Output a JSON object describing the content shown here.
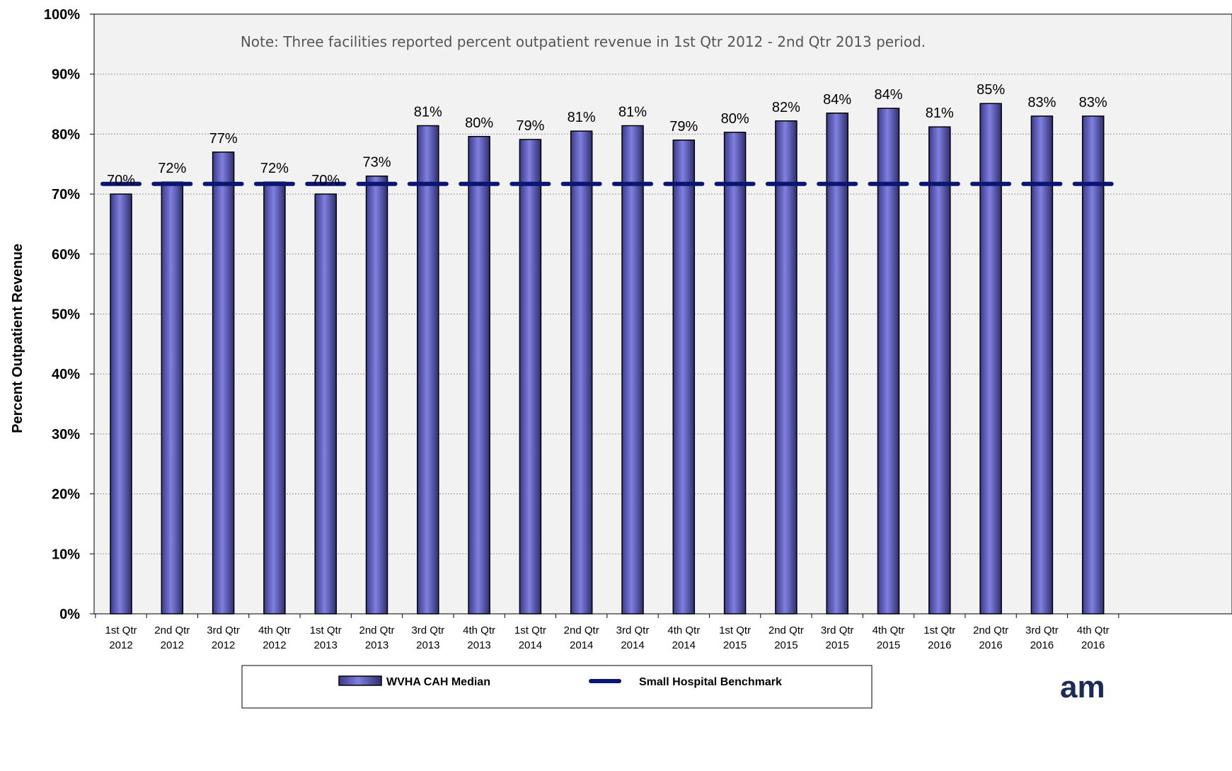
{
  "chart_data": {
    "type": "bar",
    "note": "Note:  Three facilities reported percent outpatient revenue in 1st Qtr 2012 - 2nd Qtr 2013 period.",
    "ylabel": "Percent Outpatient Revenue",
    "ylim": [
      0,
      100
    ],
    "yticks": [
      "0%",
      "10%",
      "20%",
      "30%",
      "40%",
      "50%",
      "60%",
      "70%",
      "80%",
      "90%",
      "100%"
    ],
    "grid": true,
    "categories": [
      [
        "1st Qtr",
        "2012"
      ],
      [
        "2nd Qtr",
        "2012"
      ],
      [
        "3rd Qtr",
        "2012"
      ],
      [
        "4th Qtr",
        "2012"
      ],
      [
        "1st Qtr",
        "2013"
      ],
      [
        "2nd Qtr",
        "2013"
      ],
      [
        "3rd Qtr",
        "2013"
      ],
      [
        "4th Qtr",
        "2013"
      ],
      [
        "1st Qtr",
        "2014"
      ],
      [
        "2nd Qtr",
        "2014"
      ],
      [
        "3rd Qtr",
        "2014"
      ],
      [
        "4th Qtr",
        "2014"
      ],
      [
        "1st Qtr",
        "2015"
      ],
      [
        "2nd Qtr",
        "2015"
      ],
      [
        "3rd Qtr",
        "2015"
      ],
      [
        "4th Qtr",
        "2015"
      ],
      [
        "1st Qtr",
        "2016"
      ],
      [
        "2nd Qtr",
        "2016"
      ],
      [
        "3rd Qtr",
        "2016"
      ],
      [
        "4th Qtr",
        "2016"
      ]
    ],
    "series": [
      {
        "name": "WVHA CAH Median",
        "kind": "bar",
        "color": "#8080e0",
        "values": [
          70,
          72,
          77,
          72,
          70,
          73,
          81.4,
          79.6,
          79.1,
          80.5,
          81.4,
          79.0,
          80.3,
          82.2,
          83.5,
          84.3,
          81.2,
          85.1,
          83.0,
          83.0
        ],
        "labels": [
          "70%",
          "72%",
          "77%",
          "72%",
          "70%",
          "73%",
          "81%",
          "80%",
          "79%",
          "81%",
          "81%",
          "79%",
          "80%",
          "82%",
          "84%",
          "84%",
          "81%",
          "85%",
          "83%",
          "83%"
        ]
      },
      {
        "name": "Small Hospital Benchmark",
        "kind": "line",
        "style": "dashed",
        "color": "#0a1670",
        "value": 71.7
      }
    ],
    "legend_position": "bottom",
    "colors": {
      "plot_bg": "#f2f2f2",
      "grid": "#999999"
    }
  },
  "logo_text": "am"
}
